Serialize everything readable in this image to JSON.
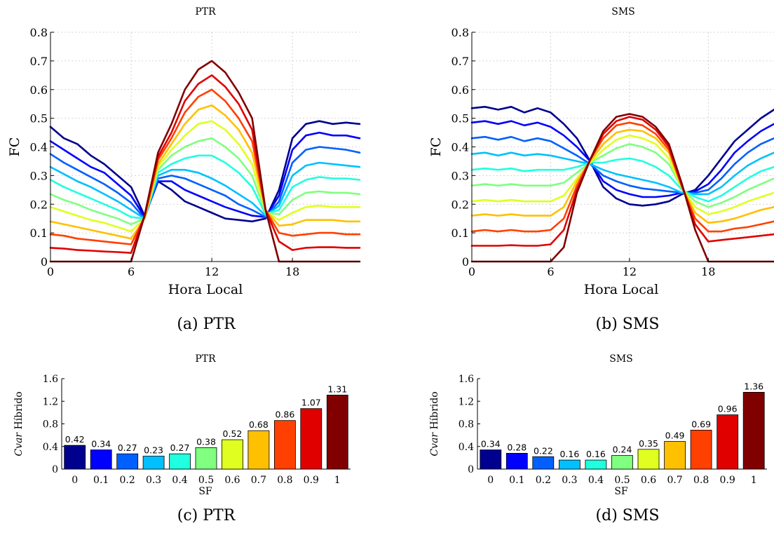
{
  "captions": [
    "(a) PTR",
    "(b) SMS",
    "(c) PTR",
    "(d) SMS"
  ],
  "colors": [
    "#00008f",
    "#0000ff",
    "#0060ff",
    "#00c0ff",
    "#20ffdf",
    "#80ff80",
    "#e0ff20",
    "#ffc000",
    "#ff4000",
    "#e00000",
    "#800000"
  ],
  "chart_data": [
    {
      "type": "line",
      "title": "PTR",
      "xlabel": "Hora Local",
      "ylabel": "FC",
      "xlim": [
        0,
        23
      ],
      "ylim": [
        0,
        0.8
      ],
      "xticks": [
        0,
        6,
        12,
        18
      ],
      "yticks": [
        "0",
        "0.1",
        "0.2",
        "0.3",
        "0.4",
        "0.5",
        "0.6",
        "0.7",
        "0.8"
      ],
      "grid": true,
      "x": [
        0,
        1,
        2,
        3,
        4,
        5,
        6,
        7,
        8,
        9,
        10,
        11,
        12,
        13,
        14,
        15,
        16,
        17,
        18,
        19,
        20,
        21,
        22,
        23
      ],
      "series": [
        {
          "values": [
            0.47,
            0.43,
            0.41,
            0.37,
            0.34,
            0.3,
            0.26,
            0.16,
            0.28,
            0.25,
            0.21,
            0.19,
            0.17,
            0.15,
            0.145,
            0.14,
            0.15,
            0.25,
            0.43,
            0.48,
            0.49,
            0.48,
            0.485,
            0.48
          ]
        },
        {
          "values": [
            0.42,
            0.39,
            0.36,
            0.33,
            0.31,
            0.27,
            0.23,
            0.155,
            0.28,
            0.28,
            0.25,
            0.23,
            0.21,
            0.19,
            0.175,
            0.16,
            0.155,
            0.23,
            0.39,
            0.44,
            0.45,
            0.44,
            0.44,
            0.43
          ]
        },
        {
          "values": [
            0.375,
            0.345,
            0.32,
            0.295,
            0.27,
            0.24,
            0.205,
            0.15,
            0.29,
            0.3,
            0.29,
            0.27,
            0.25,
            0.23,
            0.2,
            0.18,
            0.155,
            0.21,
            0.345,
            0.39,
            0.4,
            0.395,
            0.39,
            0.38
          ]
        },
        {
          "values": [
            0.33,
            0.305,
            0.28,
            0.26,
            0.235,
            0.21,
            0.18,
            0.15,
            0.3,
            0.32,
            0.32,
            0.31,
            0.29,
            0.265,
            0.235,
            0.205,
            0.16,
            0.195,
            0.3,
            0.335,
            0.345,
            0.34,
            0.335,
            0.33
          ]
        },
        {
          "values": [
            0.285,
            0.26,
            0.24,
            0.22,
            0.2,
            0.18,
            0.155,
            0.15,
            0.31,
            0.34,
            0.36,
            0.37,
            0.37,
            0.345,
            0.31,
            0.26,
            0.165,
            0.18,
            0.26,
            0.285,
            0.295,
            0.29,
            0.29,
            0.285
          ]
        },
        {
          "values": [
            0.235,
            0.215,
            0.2,
            0.18,
            0.165,
            0.15,
            0.13,
            0.15,
            0.32,
            0.37,
            0.4,
            0.42,
            0.43,
            0.4,
            0.36,
            0.3,
            0.17,
            0.165,
            0.215,
            0.24,
            0.245,
            0.24,
            0.24,
            0.235
          ]
        },
        {
          "values": [
            0.19,
            0.175,
            0.16,
            0.145,
            0.135,
            0.12,
            0.105,
            0.15,
            0.33,
            0.39,
            0.44,
            0.48,
            0.49,
            0.46,
            0.41,
            0.34,
            0.175,
            0.145,
            0.17,
            0.19,
            0.195,
            0.19,
            0.19,
            0.19
          ]
        },
        {
          "values": [
            0.14,
            0.13,
            0.12,
            0.11,
            0.1,
            0.09,
            0.08,
            0.15,
            0.34,
            0.41,
            0.48,
            0.53,
            0.545,
            0.51,
            0.46,
            0.38,
            0.18,
            0.125,
            0.13,
            0.145,
            0.145,
            0.145,
            0.14,
            0.14
          ]
        },
        {
          "values": [
            0.095,
            0.09,
            0.08,
            0.075,
            0.07,
            0.065,
            0.06,
            0.155,
            0.355,
            0.43,
            0.52,
            0.575,
            0.6,
            0.56,
            0.5,
            0.42,
            0.18,
            0.1,
            0.09,
            0.095,
            0.1,
            0.1,
            0.095,
            0.095
          ]
        },
        {
          "values": [
            0.048,
            0.045,
            0.04,
            0.038,
            0.035,
            0.033,
            0.03,
            0.16,
            0.365,
            0.45,
            0.56,
            0.62,
            0.65,
            0.61,
            0.55,
            0.46,
            0.18,
            0.07,
            0.04,
            0.048,
            0.05,
            0.05,
            0.048,
            0.048
          ]
        },
        {
          "values": [
            0,
            0,
            0,
            0,
            0,
            0,
            0,
            0.16,
            0.38,
            0.48,
            0.6,
            0.67,
            0.7,
            0.66,
            0.59,
            0.5,
            0.18,
            0,
            0,
            0,
            0,
            0,
            0,
            0
          ]
        }
      ]
    },
    {
      "type": "line",
      "title": "SMS",
      "xlabel": "Hora Local",
      "ylabel": "FC",
      "xlim": [
        0,
        23
      ],
      "ylim": [
        0,
        0.8
      ],
      "xticks": [
        0,
        6,
        12,
        18
      ],
      "yticks": [
        "0",
        "0.1",
        "0.2",
        "0.3",
        "0.4",
        "0.5",
        "0.6",
        "0.7",
        "0.8"
      ],
      "grid": true,
      "x": [
        0,
        1,
        2,
        3,
        4,
        5,
        6,
        7,
        8,
        9,
        10,
        11,
        12,
        13,
        14,
        15,
        16,
        17,
        18,
        19,
        20,
        21,
        22,
        23
      ],
      "series": [
        {
          "values": [
            0.535,
            0.54,
            0.53,
            0.54,
            0.52,
            0.535,
            0.52,
            0.48,
            0.43,
            0.35,
            0.26,
            0.22,
            0.2,
            0.195,
            0.2,
            0.21,
            0.235,
            0.25,
            0.3,
            0.36,
            0.42,
            0.46,
            0.5,
            0.53
          ]
        },
        {
          "values": [
            0.485,
            0.49,
            0.48,
            0.49,
            0.475,
            0.485,
            0.47,
            0.44,
            0.4,
            0.35,
            0.28,
            0.25,
            0.235,
            0.225,
            0.225,
            0.23,
            0.24,
            0.245,
            0.27,
            0.32,
            0.38,
            0.42,
            0.455,
            0.48
          ]
        },
        {
          "values": [
            0.43,
            0.435,
            0.425,
            0.435,
            0.42,
            0.43,
            0.42,
            0.395,
            0.37,
            0.34,
            0.3,
            0.28,
            0.265,
            0.255,
            0.25,
            0.245,
            0.24,
            0.24,
            0.25,
            0.29,
            0.34,
            0.38,
            0.41,
            0.43
          ]
        },
        {
          "values": [
            0.375,
            0.38,
            0.37,
            0.38,
            0.37,
            0.375,
            0.37,
            0.36,
            0.35,
            0.34,
            0.32,
            0.305,
            0.295,
            0.285,
            0.275,
            0.26,
            0.24,
            0.235,
            0.235,
            0.26,
            0.3,
            0.335,
            0.36,
            0.38
          ]
        },
        {
          "values": [
            0.32,
            0.325,
            0.32,
            0.325,
            0.315,
            0.32,
            0.32,
            0.32,
            0.33,
            0.345,
            0.345,
            0.355,
            0.36,
            0.35,
            0.33,
            0.3,
            0.25,
            0.225,
            0.21,
            0.23,
            0.26,
            0.29,
            0.315,
            0.33
          ]
        },
        {
          "values": [
            0.265,
            0.27,
            0.265,
            0.27,
            0.265,
            0.265,
            0.265,
            0.275,
            0.31,
            0.345,
            0.37,
            0.395,
            0.41,
            0.4,
            0.38,
            0.34,
            0.255,
            0.21,
            0.19,
            0.205,
            0.225,
            0.25,
            0.27,
            0.29
          ]
        },
        {
          "values": [
            0.21,
            0.215,
            0.21,
            0.215,
            0.21,
            0.21,
            0.21,
            0.23,
            0.29,
            0.345,
            0.39,
            0.425,
            0.44,
            0.43,
            0.41,
            0.36,
            0.255,
            0.19,
            0.165,
            0.175,
            0.19,
            0.21,
            0.225,
            0.24
          ]
        },
        {
          "values": [
            0.16,
            0.165,
            0.16,
            0.165,
            0.16,
            0.16,
            0.16,
            0.19,
            0.28,
            0.35,
            0.41,
            0.45,
            0.46,
            0.455,
            0.43,
            0.38,
            0.26,
            0.17,
            0.135,
            0.14,
            0.15,
            0.165,
            0.18,
            0.19
          ]
        },
        {
          "values": [
            0.105,
            0.11,
            0.105,
            0.11,
            0.105,
            0.105,
            0.11,
            0.15,
            0.265,
            0.355,
            0.43,
            0.475,
            0.485,
            0.475,
            0.445,
            0.39,
            0.26,
            0.15,
            0.105,
            0.105,
            0.115,
            0.12,
            0.13,
            0.14
          ]
        },
        {
          "values": [
            0.055,
            0.055,
            0.055,
            0.057,
            0.055,
            0.055,
            0.06,
            0.11,
            0.25,
            0.355,
            0.445,
            0.49,
            0.505,
            0.495,
            0.46,
            0.4,
            0.265,
            0.13,
            0.07,
            0.075,
            0.08,
            0.085,
            0.09,
            0.095
          ]
        },
        {
          "values": [
            0,
            0,
            0,
            0,
            0,
            0,
            0,
            0.05,
            0.24,
            0.355,
            0.455,
            0.505,
            0.515,
            0.505,
            0.47,
            0.41,
            0.27,
            0.11,
            0.0,
            0,
            0,
            0,
            0,
            0
          ]
        }
      ]
    },
    {
      "type": "bar",
      "title": "PTR",
      "xlabel": "SF",
      "ylabel_italic": "Cvar",
      "ylabel_rest": " Híbrido",
      "ylim": [
        0,
        1.6
      ],
      "yticks": [
        "0",
        "0.4",
        "0.8",
        "1.2",
        "1.6"
      ],
      "categories": [
        "0",
        "0.1",
        "0.2",
        "0.3",
        "0.4",
        "0.5",
        "0.6",
        "0.7",
        "0.8",
        "0.9",
        "1"
      ],
      "values": [
        0.42,
        0.34,
        0.27,
        0.23,
        0.27,
        0.38,
        0.52,
        0.68,
        0.86,
        1.07,
        1.31
      ],
      "labels": [
        "0.42",
        "0.34",
        "0.27",
        "0.23",
        "0.27",
        "0.38",
        "0.52",
        "0.68",
        "0.86",
        "1.07",
        "1.31"
      ]
    },
    {
      "type": "bar",
      "title": "SMS",
      "xlabel": "SF",
      "ylabel_italic": "Cvar",
      "ylabel_rest": " Híbrido",
      "ylim": [
        0,
        1.6
      ],
      "yticks": [
        "0",
        "0.4",
        "0.8",
        "1.2",
        "1.6"
      ],
      "categories": [
        "0",
        "0.1",
        "0.2",
        "0.3",
        "0.4",
        "0.5",
        "0.6",
        "0.7",
        "0.8",
        "0.9",
        "1"
      ],
      "values": [
        0.34,
        0.28,
        0.22,
        0.16,
        0.16,
        0.24,
        0.35,
        0.49,
        0.69,
        0.96,
        1.36
      ],
      "labels": [
        "0.34",
        "0.28",
        "0.22",
        "0.16",
        "0.16",
        "0.24",
        "0.35",
        "0.49",
        "0.69",
        "0.96",
        "1.36"
      ]
    }
  ]
}
